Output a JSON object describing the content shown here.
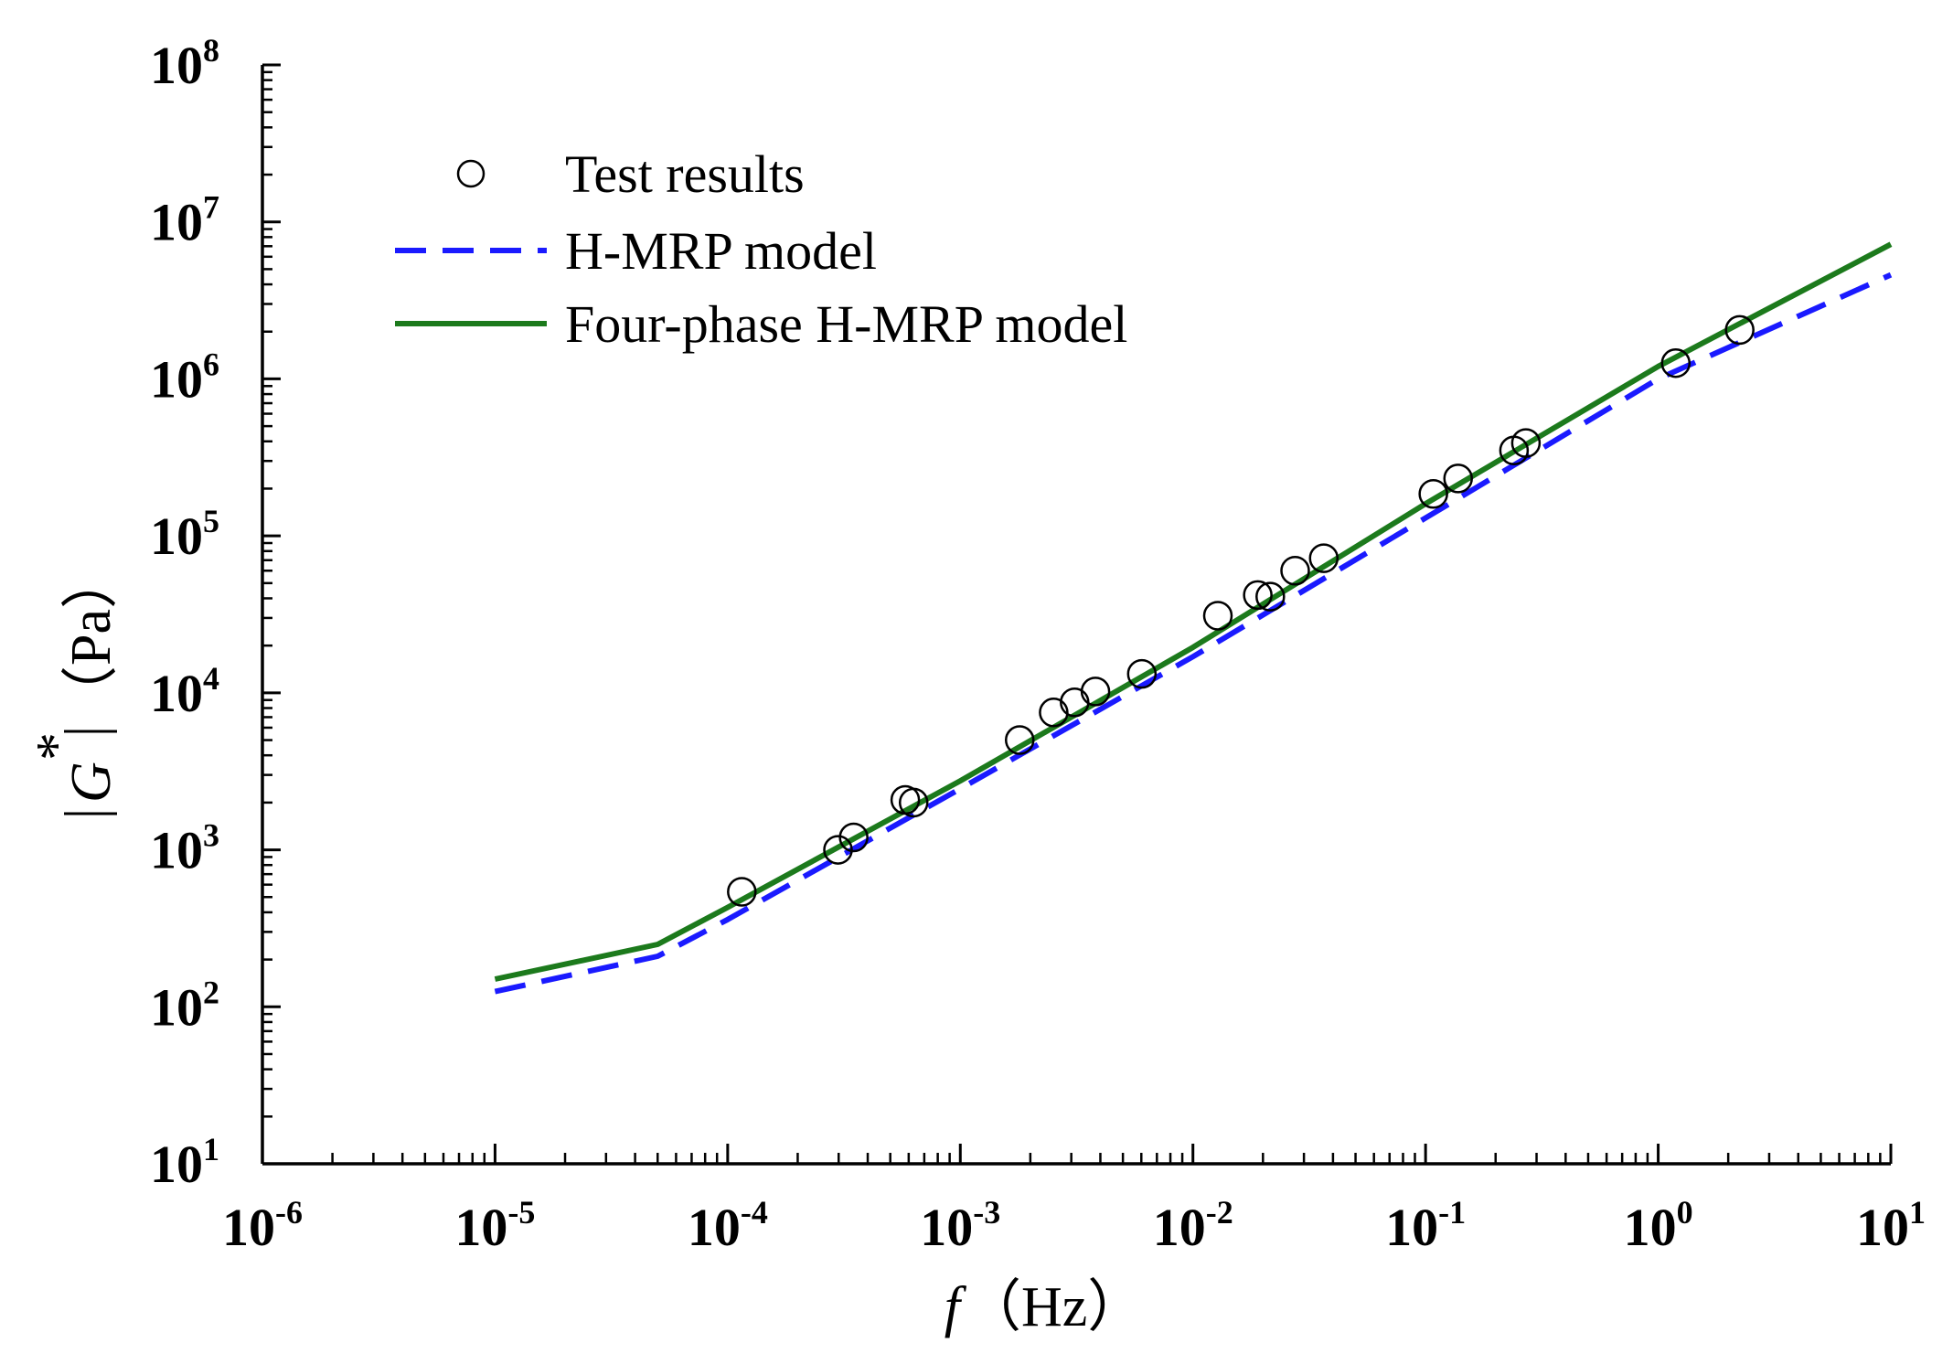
{
  "chart_data": {
    "type": "scatter",
    "xscale": "log",
    "yscale": "log",
    "xlim": [
      1e-06,
      10
    ],
    "ylim": [
      10,
      100000000.0
    ],
    "xlabel_var": "f",
    "xlabel_unit": "（Hz）",
    "ylabel_var": "G",
    "ylabel_sup": "*",
    "ylabel_unit": "（Pa）",
    "x_ticks": [
      {
        "base": "10",
        "exp": "-6"
      },
      {
        "base": "10",
        "exp": "-5"
      },
      {
        "base": "10",
        "exp": "-4"
      },
      {
        "base": "10",
        "exp": "-3"
      },
      {
        "base": "10",
        "exp": "-2"
      },
      {
        "base": "10",
        "exp": "-1"
      },
      {
        "base": "10",
        "exp": "0"
      },
      {
        "base": "10",
        "exp": "1"
      }
    ],
    "y_ticks": [
      {
        "base": "10",
        "exp": "1"
      },
      {
        "base": "10",
        "exp": "2"
      },
      {
        "base": "10",
        "exp": "3"
      },
      {
        "base": "10",
        "exp": "4"
      },
      {
        "base": "10",
        "exp": "5"
      },
      {
        "base": "10",
        "exp": "6"
      },
      {
        "base": "10",
        "exp": "7"
      },
      {
        "base": "10",
        "exp": "8"
      }
    ],
    "legend": {
      "position": "top-left",
      "entries": [
        "Test results",
        "H-MRP model",
        "Four-phase H-MRP model"
      ]
    },
    "series": [
      {
        "name": "Test results",
        "kind": "scatter",
        "marker": "open-circle",
        "color": "#000000",
        "points": [
          [
            0.000115,
            540
          ],
          [
            0.000298,
            1000
          ],
          [
            0.000348,
            1200
          ],
          [
            0.00058,
            2080
          ],
          [
            0.00063,
            2000
          ],
          [
            0.0018,
            5000
          ],
          [
            0.00252,
            7500
          ],
          [
            0.0031,
            8700
          ],
          [
            0.00381,
            10200
          ],
          [
            0.00603,
            13200
          ],
          [
            0.0128,
            31000
          ],
          [
            0.019,
            42000
          ],
          [
            0.0215,
            41000
          ],
          [
            0.0275,
            60000
          ],
          [
            0.0365,
            72000
          ],
          [
            0.108,
            185000
          ],
          [
            0.138,
            232000
          ],
          [
            0.24,
            350000
          ],
          [
            0.27,
            390000
          ],
          [
            1.19,
            1260000
          ],
          [
            2.24,
            2050000
          ]
        ]
      },
      {
        "name": "H-MRP model",
        "kind": "line",
        "style": "dashed",
        "color": "#1a1aff",
        "points": [
          [
            1e-05,
            125
          ],
          [
            5e-05,
            210
          ],
          [
            0.0001,
            360
          ],
          [
            0.001,
            2450
          ],
          [
            0.01,
            17000
          ],
          [
            0.1,
            130000
          ],
          [
            1,
            1000000
          ],
          [
            10,
            4600000
          ]
        ]
      },
      {
        "name": "Four-phase H-MRP model",
        "kind": "line",
        "style": "solid",
        "color": "#1c7a1c",
        "points": [
          [
            1e-05,
            150
          ],
          [
            5e-05,
            250
          ],
          [
            0.0001,
            430
          ],
          [
            0.001,
            2750
          ],
          [
            0.01,
            19500
          ],
          [
            0.1,
            160000
          ],
          [
            1,
            1200000
          ],
          [
            10,
            7200000
          ]
        ]
      }
    ]
  }
}
